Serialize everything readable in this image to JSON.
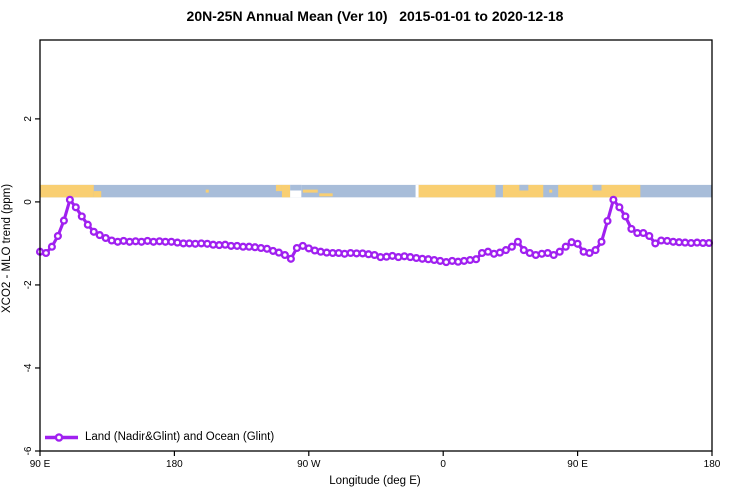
{
  "header": {
    "title": "20N-25N Annual Mean (Ver 10)   2015-01-01 to 2020-12-18"
  },
  "chart_data": {
    "type": "line",
    "title": "20N-25N Annual Mean (Ver 10)   2015-01-01 to 2020-12-18",
    "xlabel": "Longitude (deg E)",
    "ylabel": "XCO2 - MLO trend (ppm)",
    "xlim": [
      90,
      540
    ],
    "ylim": [
      -6,
      3.9
    ],
    "grid": false,
    "x_ticks": {
      "values": [
        90,
        180,
        270,
        360,
        450,
        540
      ],
      "labels": [
        "90 E",
        "180",
        "90 W",
        "0",
        "90 E",
        "180"
      ]
    },
    "y_ticks": {
      "values": [
        2,
        0,
        -2,
        -4,
        -6
      ],
      "labels": [
        "2",
        "0",
        "-2",
        "-4",
        "-6"
      ]
    },
    "legend": {
      "position": "bottom-left",
      "entries": [
        {
          "label": "Land (Nadir&Glint) and Ocean (Glint)",
          "color": "#A020F0",
          "marker": "open-circle"
        }
      ]
    },
    "colors": {
      "line": "#A020F0",
      "marker_fill": "#ffffff",
      "frame": "#000000",
      "ocean": "#a8bdd9",
      "land": "#f9cf72"
    },
    "series": [
      {
        "name": "Land (Nadir&Glint) and Ocean (Glint)",
        "color": "#A020F0",
        "x": [
          90,
          94,
          98,
          102,
          106,
          110,
          114,
          118,
          122,
          126,
          130,
          134,
          138,
          142,
          146,
          150,
          154,
          158,
          162,
          166,
          170,
          174,
          178,
          182,
          186,
          190,
          194,
          198,
          202,
          206,
          210,
          214,
          218,
          222,
          226,
          230,
          234,
          238,
          242,
          246,
          250,
          254,
          258,
          262,
          266,
          270,
          274,
          278,
          282,
          286,
          290,
          294,
          298,
          302,
          306,
          310,
          314,
          318,
          322,
          326,
          330,
          334,
          338,
          342,
          346,
          350,
          354,
          358,
          362,
          366,
          370,
          374,
          378,
          382,
          386,
          390,
          394,
          398,
          402,
          406,
          410,
          414,
          418,
          422,
          426,
          430,
          434,
          438,
          442,
          446,
          450,
          454,
          458,
          462,
          466,
          470,
          474,
          478,
          482,
          486,
          490,
          494,
          498,
          502,
          506,
          510,
          514,
          518,
          522,
          526,
          530,
          534,
          538
        ],
        "values": [
          -1.2,
          -1.23,
          -1.08,
          -0.82,
          -0.45,
          0.05,
          -0.13,
          -0.35,
          -0.55,
          -0.72,
          -0.8,
          -0.87,
          -0.93,
          -0.96,
          -0.94,
          -0.96,
          -0.95,
          -0.96,
          -0.94,
          -0.96,
          -0.95,
          -0.96,
          -0.96,
          -0.98,
          -1.0,
          -1.0,
          -1.01,
          -1.0,
          -1.01,
          -1.03,
          -1.04,
          -1.03,
          -1.06,
          -1.06,
          -1.08,
          -1.08,
          -1.09,
          -1.11,
          -1.13,
          -1.18,
          -1.22,
          -1.28,
          -1.37,
          -1.11,
          -1.06,
          -1.12,
          -1.17,
          -1.2,
          -1.22,
          -1.23,
          -1.23,
          -1.25,
          -1.23,
          -1.24,
          -1.24,
          -1.26,
          -1.28,
          -1.33,
          -1.32,
          -1.3,
          -1.33,
          -1.31,
          -1.33,
          -1.35,
          -1.37,
          -1.38,
          -1.4,
          -1.42,
          -1.45,
          -1.42,
          -1.44,
          -1.42,
          -1.4,
          -1.38,
          -1.23,
          -1.2,
          -1.25,
          -1.22,
          -1.16,
          -1.08,
          -0.96,
          -1.16,
          -1.23,
          -1.28,
          -1.25,
          -1.23,
          -1.28,
          -1.2,
          -1.08,
          -0.97,
          -1.01,
          -1.2,
          -1.23,
          -1.16,
          -0.96,
          -0.46,
          0.05,
          -0.13,
          -0.35,
          -0.65,
          -0.75,
          -0.75,
          -0.82,
          -1.0,
          -0.93,
          -0.94,
          -0.96,
          -0.97,
          -0.98,
          -0.99,
          -0.98,
          -0.99,
          -0.99
        ]
      }
    ],
    "map_band": {
      "description": "20N-25N latitude world-map strip (land/ocean) drawn near y=0",
      "y_top": 0.41,
      "y_bottom": 0.11,
      "land_segments": [
        {
          "from": 90,
          "to": 126,
          "part": "full"
        },
        {
          "from": 126,
          "to": 131,
          "part": "bottom"
        },
        {
          "from": 201,
          "to": 203,
          "part": "dot"
        },
        {
          "from": 248,
          "to": 252,
          "part": "top"
        },
        {
          "from": 252,
          "to": 257.5,
          "part": "full"
        },
        {
          "from": 266,
          "to": 276,
          "part": "mid"
        },
        {
          "from": 277,
          "to": 286,
          "part": "bottom_thin"
        },
        {
          "from": 343.5,
          "to": 395,
          "part": "full"
        },
        {
          "from": 400,
          "to": 427,
          "part": "full"
        },
        {
          "from": 431,
          "to": 433,
          "part": "dot"
        },
        {
          "from": 437,
          "to": 492,
          "part": "full"
        }
      ],
      "white_gaps": [
        {
          "from": 257.5,
          "to": 265
        },
        {
          "from": 341.5,
          "to": 343.5
        }
      ],
      "ocean_overlays": [
        {
          "from": 257.5,
          "to": 265
        },
        {
          "from": 411,
          "to": 417
        },
        {
          "from": 460,
          "to": 466
        }
      ]
    }
  }
}
